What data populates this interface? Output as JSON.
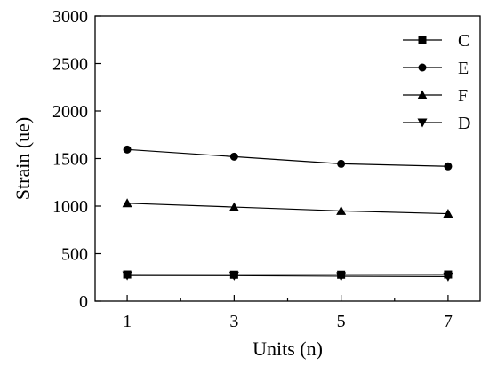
{
  "chart_data": {
    "type": "line",
    "xlabel": "Units (n)",
    "ylabel": "Strain (ue)",
    "x": [
      1,
      3,
      5,
      7
    ],
    "xlim": [
      0.4,
      7.6
    ],
    "ylim": [
      0,
      3000
    ],
    "x_ticks": [
      1,
      3,
      5,
      7
    ],
    "x_minor_ticks": [
      2,
      4,
      6
    ],
    "y_ticks": [
      0,
      500,
      1000,
      1500,
      2000,
      2500,
      3000
    ],
    "grid": false,
    "legend_position": "top-right",
    "series": [
      {
        "name": "C",
        "marker": "square",
        "values": [
          280,
          278,
          278,
          280
        ]
      },
      {
        "name": "E",
        "marker": "circle",
        "values": [
          1595,
          1520,
          1445,
          1418
        ]
      },
      {
        "name": "F",
        "marker": "triangle-up",
        "values": [
          1030,
          990,
          950,
          920
        ]
      },
      {
        "name": "D",
        "marker": "triangle-down",
        "values": [
          270,
          268,
          262,
          258
        ]
      }
    ],
    "colors": {
      "line": "#000000",
      "marker": "#000000",
      "axes": "#000000"
    }
  }
}
